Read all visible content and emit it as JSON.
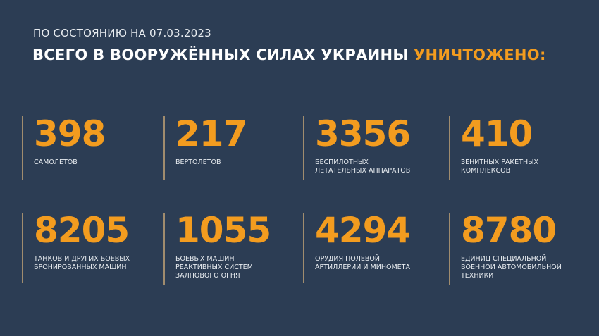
{
  "header": {
    "date_line": "ПО СОСТОЯНИЮ НА 07.03.2023",
    "title_main": "ВСЕГО В ВООРУЖЁННЫХ СИЛАХ УКРАИНЫ ",
    "title_highlight": "УНИЧТОЖЕНО:"
  },
  "colors": {
    "background": "#2c3d54",
    "accent": "#f39c1f",
    "divider": "#a08c6e"
  },
  "stats": [
    {
      "value": "398",
      "label": "САМОЛЕТОВ"
    },
    {
      "value": "217",
      "label": "ВЕРТОЛЕТОВ"
    },
    {
      "value": "3356",
      "label": "БЕСПИЛОТНЫХ\nЛЕТАТЕЛЬНЫХ АППАРАТОВ"
    },
    {
      "value": "410",
      "label": "ЗЕНИТНЫХ РАКЕТНЫХ\nКОМПЛЕКСОВ"
    },
    {
      "value": "8205",
      "label": "ТАНКОВ И ДРУГИХ БОЕВЫХ\nБРОНИРОВАННЫХ МАШИН"
    },
    {
      "value": "1055",
      "label": "БОЕВЫХ МАШИН\nРЕАКТИВНЫХ СИСТЕМ\nЗАЛПОВОГО ОГНЯ"
    },
    {
      "value": "4294",
      "label": "ОРУДИЯ ПОЛЕВОЙ\nАРТИЛЛЕРИИ И МИНОМЕТА"
    },
    {
      "value": "8780",
      "label": "ЕДИНИЦ СПЕЦИАЛЬНОЙ\nВОЕННОЙ АВТОМОБИЛЬНОЙ\nТЕХНИКИ"
    }
  ]
}
